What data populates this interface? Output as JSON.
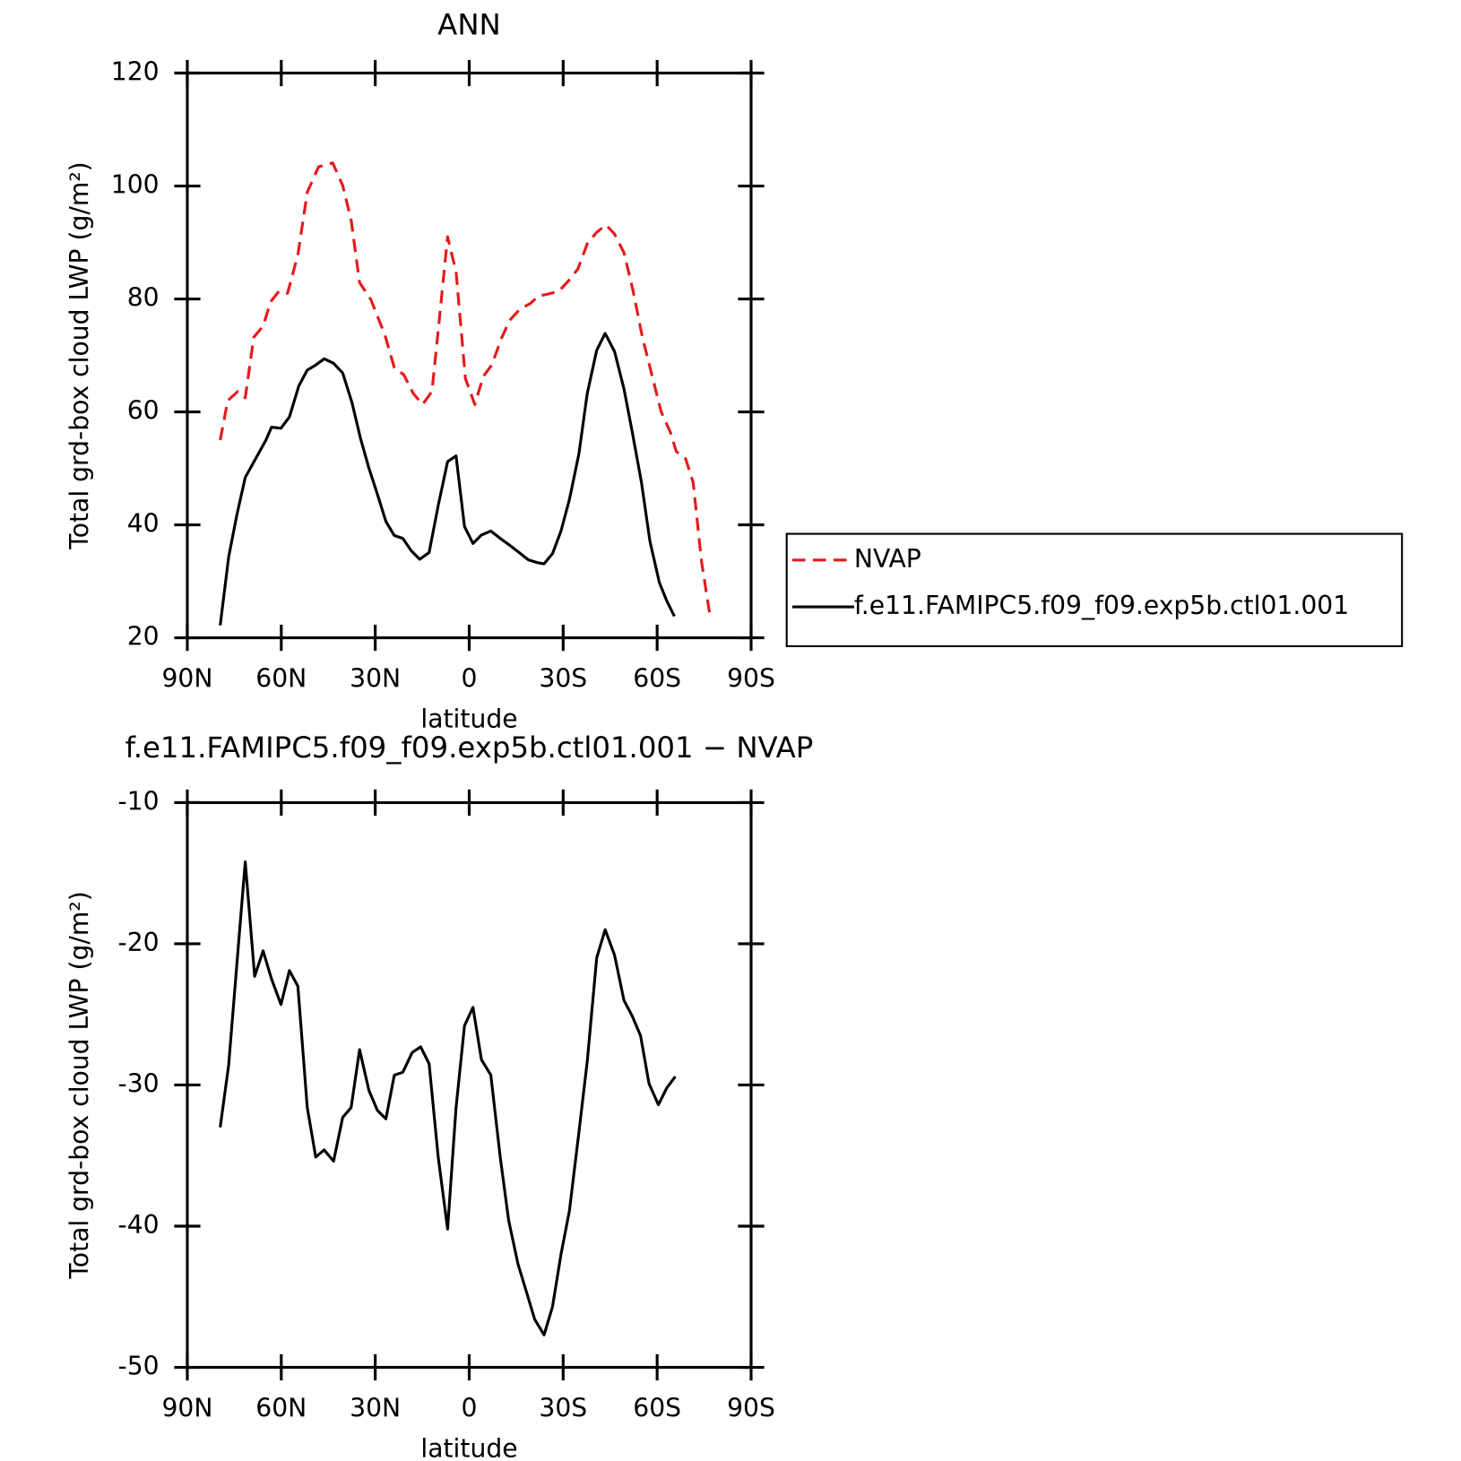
{
  "chart_data": [
    {
      "type": "line",
      "title": "ANN",
      "xlabel": "latitude",
      "ylabel": "Total grd-box cloud LWP (g/m²)",
      "xlim": [
        90,
        -90
      ],
      "xticks": [
        {
          "value": 90,
          "label": "90N"
        },
        {
          "value": 60,
          "label": "60N"
        },
        {
          "value": 30,
          "label": "30N"
        },
        0,
        {
          "value": -30,
          "label": "30S"
        },
        {
          "value": -60,
          "label": "60S"
        },
        {
          "value": -90,
          "label": "90S"
        }
      ],
      "ylim": [
        20,
        120
      ],
      "yticks": [
        20,
        40,
        60,
        80,
        100,
        120
      ],
      "legend": "right",
      "series": [
        {
          "name": "NVAP",
          "color": "#e41a1c",
          "dashed": true,
          "x": [
            79.5,
            77.1,
            73.9,
            71.5,
            68.8,
            65.8,
            63.4,
            60.7,
            58.0,
            54.7,
            51.7,
            48.1,
            43.6,
            40.4,
            37.7,
            35.0,
            31.4,
            26.9,
            23.9,
            20.9,
            17.9,
            14.9,
            11.9,
            9.6,
            6.9,
            4.2,
            1.2,
            -1.8,
            -4.5,
            -7.2,
            -10.2,
            -12.9,
            -16.2,
            -19.5,
            -22.1,
            -25.4,
            -28.7,
            -31.7,
            -34.7,
            -37.7,
            -40.7,
            -43.7,
            -46.4,
            -49.4,
            -52.3,
            -55.3,
            -58.3,
            -61.3,
            -64.3,
            -66.1,
            -69.1,
            -71.5,
            -74.2,
            -76.9
          ],
          "values": [
            55.0,
            62.0,
            63.6,
            62.5,
            73.2,
            75.2,
            79.5,
            81.4,
            81.0,
            87.8,
            98.9,
            103.4,
            104.1,
            100.1,
            94.0,
            82.9,
            79.9,
            73.6,
            67.8,
            66.6,
            63.3,
            61.3,
            63.6,
            76.0,
            91.0,
            84.8,
            65.9,
            61.3,
            66.3,
            68.3,
            72.9,
            76.2,
            78.2,
            79.2,
            80.5,
            80.9,
            81.4,
            83.2,
            85.3,
            89.8,
            91.8,
            93.1,
            91.5,
            88.2,
            81.5,
            73.2,
            66.6,
            60.0,
            56.3,
            53.0,
            51.7,
            47.5,
            33.4,
            23.8
          ]
        },
        {
          "name": "f.e11.FAMIPC5.f09_f09.exp5b.ctl01.001",
          "color": "#000000",
          "dashed": false,
          "x": [
            79.5,
            76.8,
            74.2,
            71.5,
            68.2,
            64.9,
            63.1,
            60.1,
            57.4,
            54.4,
            51.7,
            49.0,
            46.3,
            43.3,
            40.4,
            37.4,
            34.7,
            32.0,
            29.3,
            26.6,
            23.9,
            21.2,
            18.5,
            15.8,
            12.8,
            9.9,
            6.9,
            4.2,
            1.5,
            -1.2,
            -3.9,
            -6.9,
            -9.9,
            -12.9,
            -15.9,
            -18.9,
            -21.8,
            -23.9,
            -26.6,
            -29.3,
            -32.0,
            -35.0,
            -37.7,
            -40.7,
            -43.4,
            -46.4,
            -49.4,
            -52.0,
            -55.0,
            -57.7,
            -60.7,
            -63.1,
            -65.5
          ],
          "values": [
            22.2,
            34.3,
            41.7,
            48.4,
            51.7,
            55.0,
            57.3,
            57.1,
            59.1,
            64.6,
            67.4,
            68.3,
            69.4,
            68.6,
            66.9,
            61.6,
            55.3,
            50.0,
            45.4,
            40.6,
            38.1,
            37.6,
            35.4,
            33.9,
            35.1,
            43.4,
            51.2,
            52.2,
            39.7,
            36.7,
            38.2,
            38.9,
            37.6,
            36.4,
            35.1,
            33.8,
            33.3,
            33.1,
            34.9,
            38.9,
            44.5,
            52.5,
            63.3,
            70.9,
            73.9,
            70.7,
            64.1,
            56.6,
            47.5,
            37.1,
            29.8,
            26.5,
            23.8
          ]
        }
      ]
    },
    {
      "type": "line",
      "title": "f.e11.FAMIPC5.f09_f09.exp5b.ctl01.001 − NVAP",
      "xlabel": "latitude",
      "ylabel": "Total grd-box cloud LWP (g/m²)",
      "xlim": [
        90,
        -90
      ],
      "xticks": [
        {
          "value": 90,
          "label": "90N"
        },
        {
          "value": 60,
          "label": "60N"
        },
        {
          "value": 30,
          "label": "30N"
        },
        0,
        {
          "value": -30,
          "label": "30S"
        },
        {
          "value": -60,
          "label": "60S"
        },
        {
          "value": -90,
          "label": "90S"
        }
      ],
      "ylim": [
        -50,
        -10
      ],
      "yticks": [
        -50,
        -40,
        -30,
        -20,
        -10
      ],
      "series": [
        {
          "color": "#000000",
          "dashed": false,
          "x": [
            79.5,
            76.8,
            74.2,
            71.5,
            68.5,
            65.8,
            63.1,
            60.1,
            57.4,
            54.7,
            51.7,
            49.0,
            46.3,
            43.3,
            40.4,
            37.7,
            35.0,
            32.0,
            29.3,
            26.6,
            23.9,
            21.2,
            18.2,
            15.5,
            12.8,
            9.9,
            6.9,
            4.2,
            1.5,
            -1.2,
            -3.9,
            -6.9,
            -9.9,
            -12.6,
            -15.6,
            -18.2,
            -20.9,
            -23.9,
            -26.6,
            -29.3,
            -32.0,
            -35.0,
            -37.7,
            -40.7,
            -43.4,
            -46.4,
            -49.4,
            -52.0,
            -54.7,
            -57.4,
            -60.4,
            -63.1,
            -65.8
          ],
          "values": [
            -33.0,
            -28.6,
            -21.5,
            -14.2,
            -22.3,
            -20.5,
            -22.5,
            -24.3,
            -21.9,
            -23.0,
            -31.6,
            -35.1,
            -34.6,
            -35.4,
            -32.3,
            -31.6,
            -27.5,
            -30.4,
            -31.8,
            -32.4,
            -29.3,
            -29.1,
            -27.7,
            -27.3,
            -28.5,
            -35.1,
            -40.2,
            -31.6,
            -25.8,
            -24.5,
            -28.2,
            -29.3,
            -35.1,
            -39.6,
            -42.7,
            -44.6,
            -46.6,
            -47.7,
            -45.7,
            -42.0,
            -38.9,
            -33.4,
            -28.3,
            -21.0,
            -19.0,
            -20.8,
            -24.0,
            -25.1,
            -26.5,
            -29.9,
            -31.4,
            -30.2,
            -29.4
          ]
        }
      ]
    }
  ]
}
